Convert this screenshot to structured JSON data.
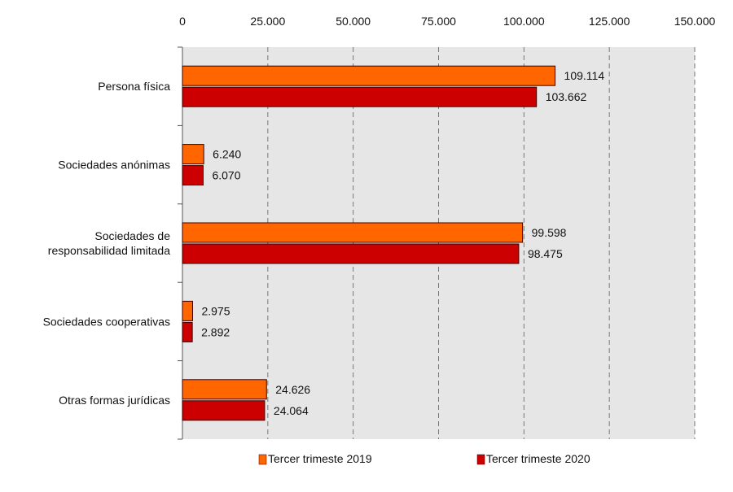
{
  "chart_data": {
    "type": "bar",
    "orientation": "horizontal",
    "categories": [
      [
        "Persona física"
      ],
      [
        "Sociedades anónimas"
      ],
      [
        "Sociedades de",
        "responsabilidad limitada"
      ],
      [
        "Sociedades cooperativas"
      ],
      [
        "Otras formas jurídicas"
      ]
    ],
    "series": [
      {
        "name": "Tercer trimeste 2019",
        "color": "#ff6600",
        "values": [
          109114,
          6240,
          99598,
          2975,
          24626
        ]
      },
      {
        "name": "Tercer trimeste 2020",
        "color": "#cc0000",
        "values": [
          103662,
          6070,
          98475,
          2892,
          24064
        ]
      }
    ],
    "value_labels": [
      [
        "109.114",
        "6.240",
        "99.598",
        "2.975",
        "24.626"
      ],
      [
        "103.662",
        "6.070",
        "98.475",
        "2.892",
        "24.064"
      ]
    ],
    "xlim": [
      0,
      150000
    ],
    "ticks": [
      0,
      25000,
      50000,
      75000,
      100000,
      125000,
      150000
    ],
    "tick_labels": [
      "0",
      "25.000",
      "50.000",
      "75.000",
      "100.000",
      "125.000",
      "150.000"
    ],
    "axis_position": "top",
    "grid": true,
    "legend_position": "bottom",
    "plot_background": "#e6e6e6"
  }
}
